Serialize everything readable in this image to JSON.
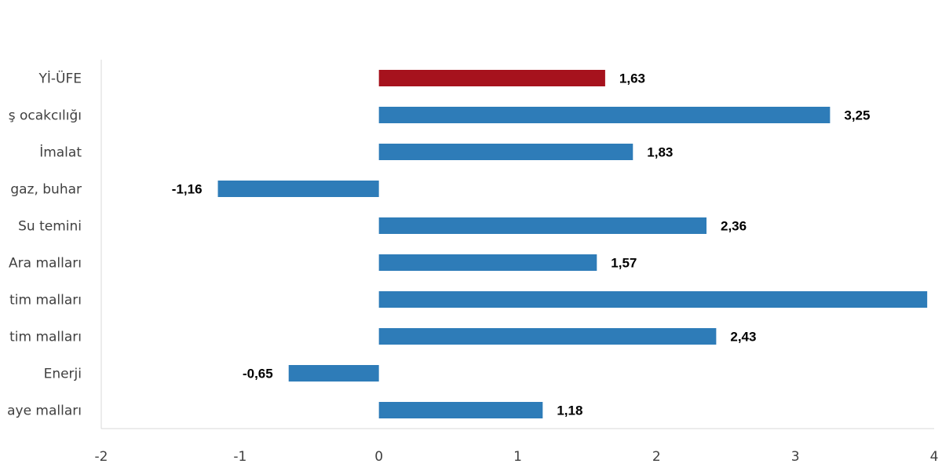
{
  "chart_data": {
    "type": "bar",
    "orientation": "horizontal",
    "categories": [
      "Yİ-ÜFE",
      "Madencilik ve taş ocakcılığı",
      "İmalat",
      "Elektrik, gaz, buhar",
      "Su temini",
      "Ara malları",
      "Dayanıklı tüketim malları",
      "Dayanıksız tüketim malları",
      "Enerji",
      "Sermaye malları"
    ],
    "visible_labels": [
      "Yİ-ÜFE",
      "ş ocakcılığı",
      "İmalat",
      "gaz, buhar",
      "Su temini",
      "Ara malları",
      "tim malları",
      "tim malları",
      "Enerji",
      "aye malları"
    ],
    "values": [
      1.63,
      3.25,
      1.83,
      -1.16,
      2.36,
      1.57,
      3.95,
      2.43,
      -0.65,
      1.18
    ],
    "data_labels": [
      "1,63",
      "3,25",
      "1,83",
      "-1,16",
      "2,36",
      "1,57",
      "",
      "2,43",
      "-0,65",
      "1,18"
    ],
    "xlim": [
      -2,
      4
    ],
    "xticks": [
      -2,
      -1,
      0,
      1,
      2,
      3,
      4
    ],
    "xtick_labels": [
      "-2",
      "-1",
      "0",
      "1",
      "2",
      "3",
      "4"
    ],
    "highlight_index": 0,
    "colors": {
      "highlight": "#A6121D",
      "bar": "#2E7CB8",
      "axis": "#D9D9D9"
    },
    "grid": false,
    "legend": "none"
  }
}
